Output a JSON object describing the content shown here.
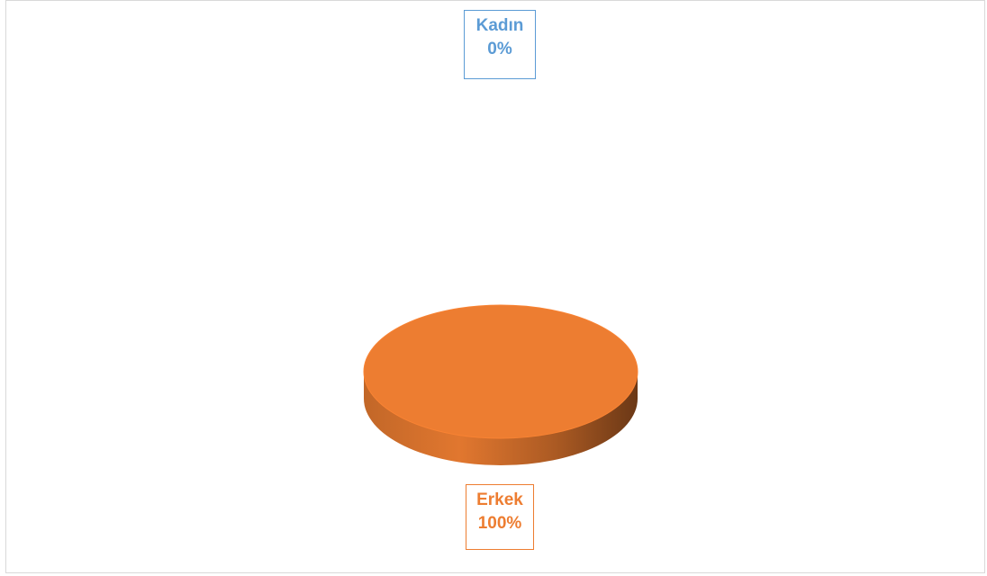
{
  "chart_data": {
    "type": "pie",
    "style": "3d",
    "title": "",
    "slices": [
      {
        "label": "Kadın",
        "value": 0,
        "percent_label": "0%",
        "color": "#5B9BD5"
      },
      {
        "label": "Erkek",
        "value": 100,
        "percent_label": "100%",
        "color": "#ED7D31"
      }
    ],
    "legend": "none"
  }
}
